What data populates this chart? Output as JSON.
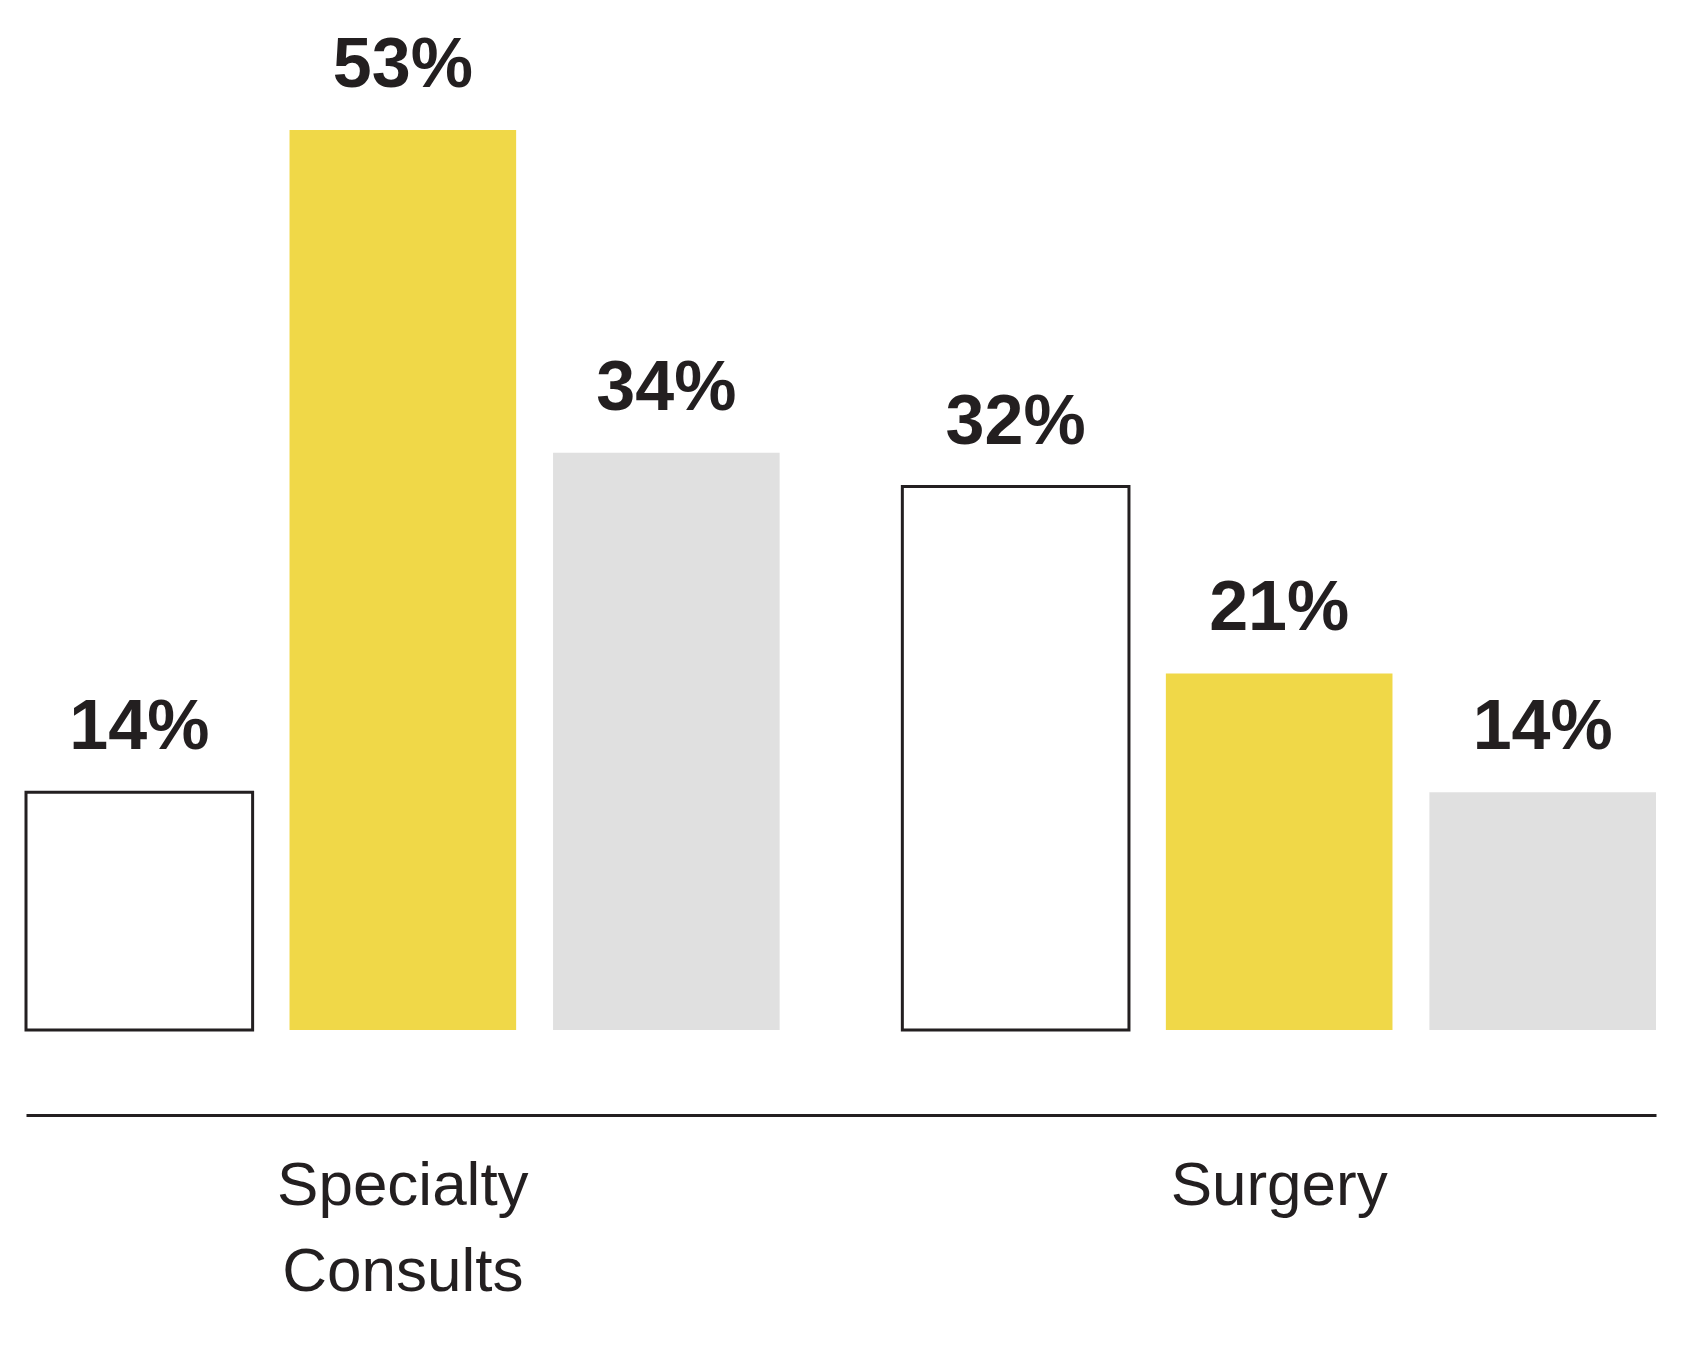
{
  "chart_data": {
    "type": "bar",
    "categories": [
      "Specialty Consults",
      "Surgery"
    ],
    "series": [
      {
        "color": "#ffffff",
        "values": [
          14,
          32
        ],
        "value_labels": [
          "14%",
          "32%"
        ]
      },
      {
        "color": "#f0d848",
        "values": [
          53,
          21
        ],
        "value_labels": [
          "53%",
          "21%"
        ]
      },
      {
        "color": "#e0e0e0",
        "values": [
          34,
          14
        ],
        "value_labels": [
          "34%",
          "14%"
        ]
      }
    ],
    "grid": false
  }
}
